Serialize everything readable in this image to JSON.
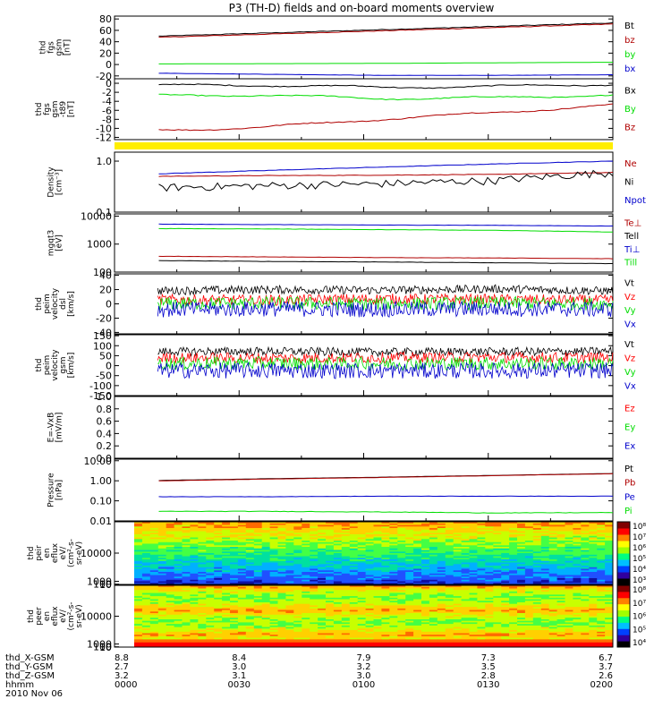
{
  "figure": {
    "title": "P3 (TH-D) fields and on-board moments overview"
  },
  "colorbar_labels": [
    "10⁸",
    "10⁷",
    "10⁶",
    "10⁵",
    "10⁴",
    "10³"
  ],
  "colorbar2_labels": [
    "10⁸",
    "10⁷",
    "10⁶",
    "10⁵",
    "10⁴"
  ],
  "footer": {
    "rows": [
      {
        "label": "thd_X-GSM",
        "values": [
          "8.8",
          "8.4",
          "7.9",
          "7.3",
          "6.7"
        ]
      },
      {
        "label": "thd_Y-GSM",
        "values": [
          "2.7",
          "3.0",
          "3.2",
          "3.5",
          "3.7"
        ]
      },
      {
        "label": "thd_Z-GSM",
        "values": [
          "3.2",
          "3.1",
          "3.0",
          "2.8",
          "2.6"
        ]
      },
      {
        "label": "hhmm",
        "values": [
          "0000",
          "0030",
          "0100",
          "0130",
          "0200"
        ]
      }
    ],
    "date": "2010 Nov 06"
  },
  "chart_data": [
    {
      "type": "line",
      "panel": "fgs_gsm",
      "ylabel": [
        "thd",
        "fgs",
        "gsm",
        "[nT]"
      ],
      "ylim": [
        -25,
        85
      ],
      "yticks": [
        {
          "v": 80,
          "t": "80"
        },
        {
          "v": 60,
          "t": "60"
        },
        {
          "v": 40,
          "t": "40"
        },
        {
          "v": 20,
          "t": "20"
        },
        {
          "v": 0,
          "t": "0"
        },
        {
          "v": -20,
          "t": "-20"
        }
      ],
      "x": [
        0,
        0.5,
        1,
        1.5,
        2
      ],
      "series": [
        {
          "name": "Bt",
          "color": "#000000",
          "values": [
            49,
            55,
            61,
            67,
            73
          ]
        },
        {
          "name": "bz",
          "color": "#b00000",
          "values": [
            47,
            53,
            59,
            65,
            71
          ]
        },
        {
          "name": "by",
          "color": "#00dd00",
          "values": [
            1,
            1.5,
            2,
            3,
            4
          ]
        },
        {
          "name": "bx",
          "color": "#0000cc",
          "values": [
            -15,
            -17,
            -19,
            -19,
            -18
          ]
        }
      ]
    },
    {
      "type": "line",
      "panel": "fgs_gsm_t89",
      "ylabel": [
        "thd",
        "fgs",
        "gsm",
        "-t89",
        "[nT]"
      ],
      "ylim": [
        -12.5,
        1
      ],
      "yticks": [
        {
          "v": 0,
          "t": "0"
        },
        {
          "v": -2,
          "t": "-2"
        },
        {
          "v": -4,
          "t": "-4"
        },
        {
          "v": -6,
          "t": "-6"
        },
        {
          "v": -8,
          "t": "-8"
        },
        {
          "v": -10,
          "t": "-10"
        },
        {
          "v": -12,
          "t": "-12"
        }
      ],
      "x": [
        0,
        0.5,
        1,
        1.5,
        2
      ],
      "series": [
        {
          "name": "Bx",
          "color": "#000000",
          "values": [
            -0.5,
            -0.4,
            -0.9,
            -0.7,
            -0.2
          ]
        },
        {
          "name": "By",
          "color": "#00dd00",
          "values": [
            -2.8,
            -2.6,
            -3.4,
            -3.2,
            -2.6
          ]
        },
        {
          "name": "Bz",
          "color": "#b00000",
          "values": [
            -10.5,
            -9.8,
            -8.0,
            -6.5,
            -4.8
          ]
        }
      ]
    },
    {
      "type": "line",
      "panel": "density",
      "scale": "log",
      "ylabel": [
        "Density",
        "[cm⁻³]"
      ],
      "ylim": [
        0.1,
        1.5
      ],
      "yticks": [
        {
          "v": 1.0,
          "t": "1.0"
        },
        {
          "v": 0.1,
          "t": "0.1"
        }
      ],
      "x": [
        0,
        0.5,
        1,
        1.5,
        2
      ],
      "series": [
        {
          "name": "Ne",
          "color": "#b00000",
          "values": [
            0.5,
            0.52,
            0.53,
            0.55,
            0.6
          ]
        },
        {
          "name": "Ni",
          "color": "#000000",
          "values": [
            0.3,
            0.33,
            0.36,
            0.42,
            0.6
          ]
        },
        {
          "name": "Npot",
          "color": "#0000cc",
          "values": [
            0.55,
            0.65,
            0.76,
            0.88,
            1.0
          ]
        }
      ]
    },
    {
      "type": "line",
      "panel": "temperature",
      "scale": "log",
      "ylabel": [
        "mgqt3",
        "[eV]"
      ],
      "ylim": [
        100,
        12000
      ],
      "yticks": [
        {
          "v": 10000,
          "t": "10000"
        },
        {
          "v": 1000,
          "t": "1000"
        },
        {
          "v": 100,
          "t": "100"
        }
      ],
      "x": [
        0,
        0.5,
        1,
        1.5,
        2
      ],
      "series": [
        {
          "name": "Te⊥",
          "color": "#b00000",
          "values": [
            370,
            350,
            330,
            320,
            300
          ]
        },
        {
          "name": "Tell",
          "color": "#000000",
          "values": [
            260,
            240,
            230,
            215,
            200
          ]
        },
        {
          "name": "Ti⊥",
          "color": "#0000cc",
          "values": [
            5200,
            5000,
            4800,
            4700,
            4400
          ]
        },
        {
          "name": "Till",
          "color": "#00dd00",
          "values": [
            3600,
            3500,
            3300,
            3100,
            2700
          ]
        }
      ]
    },
    {
      "type": "line",
      "panel": "peim_velocity_dsl",
      "ylabel": [
        "thd",
        "peim",
        "velocity",
        "dsl",
        "[km/s]"
      ],
      "ylim": [
        -42,
        42
      ],
      "yticks": [
        {
          "v": 40,
          "t": "40"
        },
        {
          "v": 20,
          "t": "20"
        },
        {
          "v": 0,
          "t": "0"
        },
        {
          "v": -20,
          "t": "-20"
        },
        {
          "v": -40,
          "t": "-40"
        }
      ],
      "x": [
        0,
        0.5,
        1,
        1.5,
        2
      ],
      "series": [
        {
          "name": "Vt",
          "color": "#000000",
          "values": [
            18,
            20,
            19,
            21,
            18
          ]
        },
        {
          "name": "Vz",
          "color": "#ff0000",
          "values": [
            6,
            5,
            7,
            6,
            5
          ]
        },
        {
          "name": "Vy",
          "color": "#00dd00",
          "values": [
            0,
            1,
            0,
            1,
            0
          ]
        },
        {
          "name": "Vx",
          "color": "#0000cc",
          "values": [
            -8,
            -7,
            -8,
            -7,
            -8
          ]
        }
      ]
    },
    {
      "type": "line",
      "panel": "peim_velocity_gsm",
      "ylabel": [
        "thd",
        "peim",
        "velocity",
        "gsm",
        "[km/s]"
      ],
      "ylim": [
        -150,
        155
      ],
      "yticks": [
        {
          "v": 150,
          "t": "150"
        },
        {
          "v": 100,
          "t": "100"
        },
        {
          "v": 50,
          "t": "50"
        },
        {
          "v": 0,
          "t": "0"
        },
        {
          "v": -50,
          "t": "-50"
        },
        {
          "v": -100,
          "t": "-100"
        },
        {
          "v": -150,
          "t": "-150"
        }
      ],
      "x": [
        0,
        0.5,
        1,
        1.5,
        2
      ],
      "series": [
        {
          "name": "Vt",
          "color": "#000000",
          "values": [
            70,
            72,
            68,
            70,
            72
          ]
        },
        {
          "name": "Vz",
          "color": "#ff0000",
          "values": [
            40,
            38,
            40,
            42,
            40
          ]
        },
        {
          "name": "Vy",
          "color": "#00dd00",
          "values": [
            10,
            12,
            10,
            11,
            10
          ]
        },
        {
          "name": "Vx",
          "color": "#0000cc",
          "values": [
            -25,
            -24,
            -26,
            -25,
            -24
          ]
        }
      ]
    },
    {
      "type": "line",
      "panel": "efield",
      "ylabel": [
        "E=-VxB",
        "[mV/m]"
      ],
      "ylim": [
        0,
        1.0
      ],
      "yticks": [
        {
          "v": 1.0,
          "t": "1.0"
        },
        {
          "v": 0.8,
          "t": "0.8"
        },
        {
          "v": 0.6,
          "t": "0.6"
        },
        {
          "v": 0.4,
          "t": "0.4"
        },
        {
          "v": 0.2,
          "t": "0.2"
        },
        {
          "v": 0.0,
          "t": "0.0"
        }
      ],
      "x": [],
      "series": [
        {
          "name": "Ez",
          "color": "#ff0000",
          "values": []
        },
        {
          "name": "Ey",
          "color": "#00dd00",
          "values": []
        },
        {
          "name": "Ex",
          "color": "#0000cc",
          "values": []
        }
      ]
    },
    {
      "type": "line",
      "panel": "pressure",
      "scale": "log",
      "ylabel": [
        "Pressure",
        "[nPa]"
      ],
      "ylim": [
        0.01,
        12
      ],
      "yticks": [
        {
          "v": 10,
          "t": "10.00"
        },
        {
          "v": 1,
          "t": "1.00"
        },
        {
          "v": 0.1,
          "t": "0.10"
        },
        {
          "v": 0.01,
          "t": "0.01"
        }
      ],
      "x": [
        0,
        0.5,
        1,
        1.5,
        2
      ],
      "series": [
        {
          "name": "Pt",
          "color": "#000000",
          "values": [
            1.0,
            1.25,
            1.5,
            1.85,
            2.3
          ]
        },
        {
          "name": "Pb",
          "color": "#b00000",
          "values": [
            0.95,
            1.2,
            1.45,
            1.8,
            2.25
          ]
        },
        {
          "name": "Pe",
          "color": "#0000cc",
          "values": [
            0.16,
            0.16,
            0.17,
            0.17,
            0.17
          ]
        },
        {
          "name": "Pi",
          "color": "#00dd00",
          "values": [
            0.03,
            0.03,
            0.028,
            0.025,
            0.026
          ]
        }
      ]
    },
    {
      "type": "heatmap",
      "panel": "peir_en_eflux",
      "ylabel": [
        "thd",
        "peir",
        "en",
        "eflux",
        "eV/",
        "(cm²-s-",
        "sr-eV)"
      ],
      "ylim": [
        8,
        20000
      ],
      "yticks": [
        {
          "v": 10000,
          "t": "10000"
        },
        {
          "v": 1000,
          "t": "1000"
        },
        {
          "v": 100,
          "t": "100"
        },
        {
          "v": 10,
          "t": "10"
        }
      ]
    },
    {
      "type": "heatmap",
      "panel": "peer_en_eflux",
      "ylabel": [
        "thd",
        "peer",
        "en",
        "eflux",
        "eV/",
        "(cm²-s-",
        "sr-eV)"
      ],
      "ylim": [
        8,
        20000
      ],
      "yticks": [
        {
          "v": 10000,
          "t": "10000"
        },
        {
          "v": 1000,
          "t": "1000"
        },
        {
          "v": 100,
          "t": "100"
        },
        {
          "v": 10,
          "t": "10"
        }
      ]
    }
  ]
}
